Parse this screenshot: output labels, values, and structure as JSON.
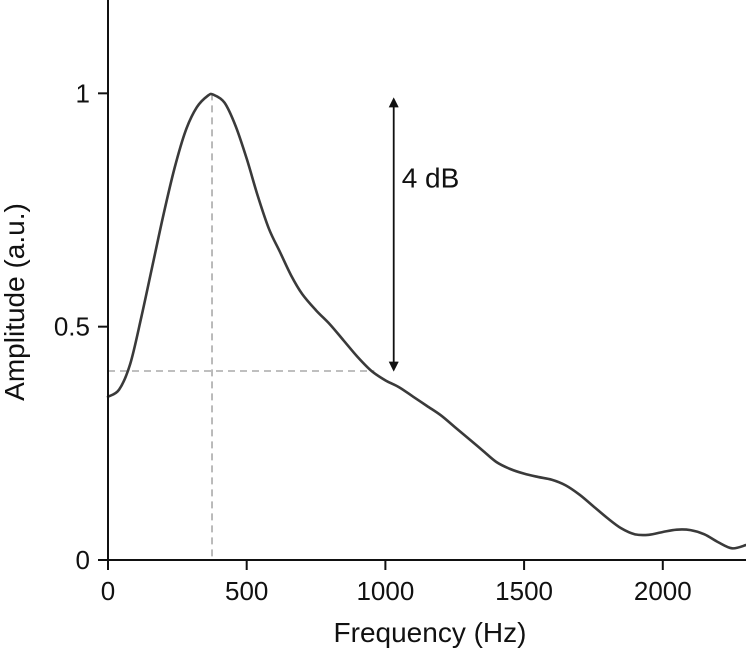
{
  "chart_data": {
    "type": "line",
    "title": "",
    "xlabel": "Frequency (Hz)",
    "ylabel": "Amplitude (a.u.)",
    "xlim": [
      0,
      2300
    ],
    "ylim": [
      0,
      1.2
    ],
    "grid": false,
    "xticks": [
      0,
      500,
      1000,
      1500,
      2000
    ],
    "xtick_labels": [
      "0",
      "500",
      "1000",
      "1500",
      "2000"
    ],
    "yticks": [
      0,
      0.5,
      1
    ],
    "ytick_labels": [
      "0",
      "0.5",
      "1"
    ],
    "series": [
      {
        "color": "#3a3a3a",
        "points": [
          [
            0,
            0.35
          ],
          [
            40,
            0.365
          ],
          [
            80,
            0.42
          ],
          [
            120,
            0.52
          ],
          [
            160,
            0.63
          ],
          [
            200,
            0.74
          ],
          [
            240,
            0.84
          ],
          [
            280,
            0.92
          ],
          [
            320,
            0.97
          ],
          [
            360,
            0.995
          ],
          [
            380,
            0.997
          ],
          [
            420,
            0.98
          ],
          [
            460,
            0.93
          ],
          [
            500,
            0.86
          ],
          [
            540,
            0.78
          ],
          [
            580,
            0.71
          ],
          [
            620,
            0.66
          ],
          [
            660,
            0.61
          ],
          [
            700,
            0.57
          ],
          [
            750,
            0.535
          ],
          [
            800,
            0.505
          ],
          [
            850,
            0.47
          ],
          [
            900,
            0.435
          ],
          [
            950,
            0.405
          ],
          [
            1000,
            0.385
          ],
          [
            1050,
            0.37
          ],
          [
            1100,
            0.35
          ],
          [
            1150,
            0.33
          ],
          [
            1200,
            0.31
          ],
          [
            1250,
            0.285
          ],
          [
            1300,
            0.26
          ],
          [
            1350,
            0.235
          ],
          [
            1400,
            0.21
          ],
          [
            1450,
            0.195
          ],
          [
            1500,
            0.185
          ],
          [
            1550,
            0.178
          ],
          [
            1600,
            0.172
          ],
          [
            1650,
            0.16
          ],
          [
            1700,
            0.14
          ],
          [
            1750,
            0.115
          ],
          [
            1800,
            0.09
          ],
          [
            1850,
            0.068
          ],
          [
            1900,
            0.055
          ],
          [
            1950,
            0.054
          ],
          [
            2000,
            0.06
          ],
          [
            2050,
            0.065
          ],
          [
            2100,
            0.064
          ],
          [
            2150,
            0.055
          ],
          [
            2200,
            0.038
          ],
          [
            2250,
            0.025
          ],
          [
            2300,
            0.032
          ]
        ]
      }
    ],
    "reference_lines": {
      "peak_x": 375,
      "peak_y": 1.0,
      "level_y": 0.405,
      "level_x_end": 960,
      "color": "#aaaaaa"
    },
    "annotations": [
      {
        "text": "4 dB",
        "arrow_x": 1030,
        "arrow_y_top": 0.985,
        "arrow_y_bottom": 0.41
      }
    ]
  }
}
